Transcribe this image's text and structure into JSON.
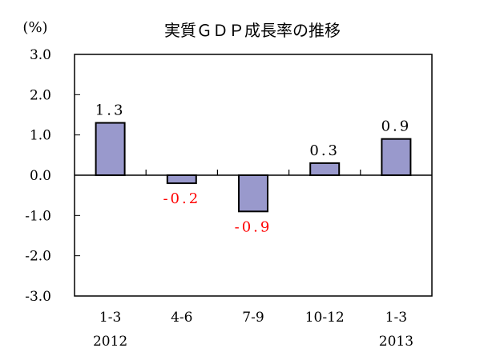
{
  "chart_data": {
    "type": "bar",
    "title": "実質ＧＤＰ成長率の推移",
    "unit_label": "(%)",
    "ylim": [
      -3.0,
      3.0
    ],
    "yticks": [
      "3.0",
      "2.0",
      "1.0",
      "0.0",
      "-1.0",
      "-2.0",
      "-3.0"
    ],
    "ytick_values": [
      3.0,
      2.0,
      1.0,
      0.0,
      -1.0,
      -2.0,
      -3.0
    ],
    "categories": [
      "1-3",
      "4-6",
      "7-9",
      "10-12",
      "1-3"
    ],
    "year_labels": [
      "2012",
      "",
      "",
      "",
      "2013"
    ],
    "values": [
      1.3,
      -0.2,
      -0.9,
      0.3,
      0.9
    ],
    "value_labels": [
      "1.3",
      "-0.2",
      "-0.9",
      "0.3",
      "0.9"
    ],
    "grid": false,
    "legend": "none",
    "colors": {
      "bar_fill": "#9999cc",
      "bar_stroke": "#000000",
      "positive_label": "#000000",
      "negative_label": "#ff0000",
      "axis": "#000000"
    }
  }
}
